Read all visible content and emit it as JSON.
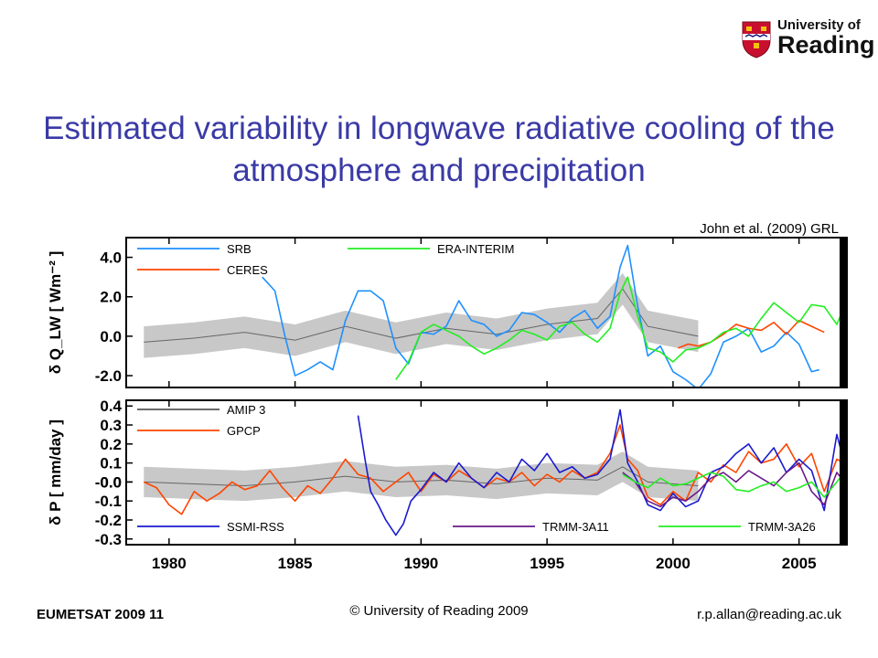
{
  "logo": {
    "line1": "University of",
    "line2": "Reading"
  },
  "title": "Estimated variability in longwave radiative cooling of the atmosphere and precipitation",
  "citation": "John et al. (2009) GRL",
  "footer": {
    "left": "EUMETSAT 2009   11",
    "center": "© University of Reading 2009",
    "right": "r.p.allan@reading.ac.uk"
  },
  "colors": {
    "title": "#3a3aa6",
    "SRB": "#1e90ff",
    "CERES": "#ff4500",
    "ERA-INTERIM": "#22ee22",
    "AMIP 3": "#555555",
    "GPCP": "#ff4500",
    "SSMI-RSS": "#1a1ad0",
    "TRMM-3A11": "#6a1a8a",
    "TRMM-3A26": "#22ee22",
    "spread": "#c8c8c8"
  },
  "chart_data": [
    {
      "type": "line",
      "ylabel": "δ Q_LW [ Wm⁻² ]",
      "ylim": [
        -2.6,
        5.0
      ],
      "yticks": [
        "4.0",
        "2.0",
        "0.0",
        "-2.0"
      ],
      "ytick_values": [
        4.0,
        2.0,
        0.0,
        -2.0
      ],
      "xlim": [
        1978.3,
        2006.9
      ],
      "legend": [
        {
          "name": "SRB",
          "color": "#1e90ff"
        },
        {
          "name": "CERES",
          "color": "#ff4500"
        },
        {
          "name": "ERA-INTERIM",
          "color": "#22ee22"
        }
      ],
      "shaded_band": {
        "x": [
          1979,
          1981,
          1983,
          1985,
          1987,
          1989,
          1991,
          1993,
          1995,
          1997,
          1998,
          1999,
          2001
        ],
        "y": [
          -0.3,
          -0.1,
          0.2,
          -0.2,
          0.5,
          -0.1,
          0.4,
          0.1,
          0.6,
          0.9,
          2.4,
          0.5,
          0.0
        ],
        "half_width": 0.8
      },
      "series": [
        {
          "name": "SRB",
          "x": [
            1983.7,
            1984.2,
            1984.6,
            1985.0,
            1985.5,
            1986.0,
            1986.5,
            1987.0,
            1987.5,
            1988.0,
            1988.5,
            1989.0,
            1989.5,
            1990.0,
            1990.5,
            1991.0,
            1991.5,
            1992.0,
            1992.5,
            1993.0,
            1993.5,
            1994.0,
            1994.5,
            1995.0,
            1995.5,
            1996.0,
            1996.5,
            1997.0,
            1997.5,
            1997.9,
            1998.2,
            1998.6,
            1999.0,
            1999.5,
            2000.0,
            2000.5,
            2001.0,
            2001.5,
            2002.0,
            2002.5,
            2003.0,
            2003.5,
            2004.0,
            2004.5,
            2005.0,
            2005.5,
            2005.8
          ],
          "y": [
            3.0,
            2.3,
            0.0,
            -2.0,
            -1.7,
            -1.3,
            -1.7,
            0.8,
            2.3,
            2.3,
            1.8,
            -0.6,
            -1.4,
            0.2,
            0.1,
            0.5,
            1.8,
            0.8,
            0.6,
            0.0,
            0.3,
            1.2,
            1.1,
            0.7,
            0.2,
            0.9,
            1.3,
            0.4,
            1.0,
            3.5,
            4.6,
            1.5,
            -1.0,
            -0.5,
            -1.8,
            -2.2,
            -2.7,
            -1.9,
            -0.3,
            0.0,
            0.4,
            -0.8,
            -0.5,
            0.2,
            -0.4,
            -1.8,
            -1.7
          ]
        },
        {
          "name": "CERES",
          "x": [
            2000.2,
            2000.6,
            2001.0,
            2001.5,
            2002.0,
            2002.5,
            2003.0,
            2003.5,
            2004.0,
            2004.5,
            2005.0,
            2005.5,
            2006.0
          ],
          "y": [
            -0.6,
            -0.4,
            -0.5,
            -0.3,
            0.1,
            0.6,
            0.4,
            0.3,
            0.7,
            0.1,
            0.8,
            0.5,
            0.2
          ]
        },
        {
          "name": "ERA-INTERIM",
          "x": [
            1989.0,
            1989.5,
            1990.0,
            1990.5,
            1991.0,
            1991.5,
            1992.0,
            1992.5,
            1993.0,
            1993.5,
            1994.0,
            1994.5,
            1995.0,
            1995.5,
            1996.0,
            1996.5,
            1997.0,
            1997.5,
            1997.9,
            1998.2,
            1998.6,
            1999.0,
            1999.5,
            2000.0,
            2000.5,
            2001.0,
            2001.5,
            2002.0,
            2002.5,
            2003.0,
            2003.5,
            2004.0,
            2004.5,
            2005.0,
            2005.5,
            2006.0,
            2006.5,
            2006.8
          ],
          "y": [
            -2.2,
            -1.3,
            0.2,
            0.6,
            0.3,
            0.0,
            -0.5,
            -0.9,
            -0.6,
            -0.2,
            0.3,
            0.1,
            -0.2,
            0.5,
            0.7,
            0.1,
            -0.3,
            0.4,
            2.2,
            3.0,
            1.0,
            -0.6,
            -0.8,
            -1.3,
            -0.7,
            -0.6,
            -0.3,
            0.2,
            0.4,
            0.0,
            0.9,
            1.7,
            1.2,
            0.7,
            1.6,
            1.5,
            0.6,
            1.5
          ]
        }
      ]
    },
    {
      "type": "line",
      "ylabel": "δ P [ mm/day ]",
      "ylim": [
        -0.33,
        0.43
      ],
      "yticks": [
        "0.4",
        "0.3",
        "0.2",
        "0.1",
        "0.0",
        "-0.0",
        "-0.1",
        "-0.2",
        "-0.3"
      ],
      "ytick_values": [
        0.4,
        0.3,
        0.2,
        0.1,
        0.0,
        -0.0,
        -0.1,
        -0.2,
        -0.3
      ],
      "xlim": [
        1978.3,
        2006.9
      ],
      "xticks": [
        "1980",
        "1985",
        "1990",
        "1995",
        "2000",
        "2005"
      ],
      "xtick_values": [
        1980,
        1985,
        1990,
        1995,
        2000,
        2005
      ],
      "legend": [
        {
          "name": "AMIP 3",
          "color": "#555555"
        },
        {
          "name": "GPCP",
          "color": "#ff4500"
        },
        {
          "name": "SSMI-RSS",
          "color": "#1a1ad0"
        },
        {
          "name": "TRMM-3A11",
          "color": "#6a1a8a"
        },
        {
          "name": "TRMM-3A26",
          "color": "#22ee22"
        }
      ],
      "shaded_band": {
        "x": [
          1979,
          1981,
          1983,
          1985,
          1987,
          1989,
          1991,
          1993,
          1995,
          1997,
          1998,
          1999,
          2001
        ],
        "y": [
          0.0,
          -0.01,
          -0.02,
          0.0,
          0.03,
          0.0,
          0.01,
          -0.01,
          0.02,
          0.01,
          0.08,
          0.0,
          -0.02
        ],
        "half_width": 0.08
      },
      "series": [
        {
          "name": "GPCP",
          "x": [
            1979.0,
            1979.5,
            1980.0,
            1980.5,
            1981.0,
            1981.5,
            1982.0,
            1982.5,
            1983.0,
            1983.5,
            1984.0,
            1984.5,
            1985.0,
            1985.5,
            1986.0,
            1986.5,
            1987.0,
            1987.5,
            1988.0,
            1988.5,
            1989.0,
            1989.5,
            1990.0,
            1990.5,
            1991.0,
            1991.5,
            1992.0,
            1992.5,
            1993.0,
            1993.5,
            1994.0,
            1994.5,
            1995.0,
            1995.5,
            1996.0,
            1996.5,
            1997.0,
            1997.5,
            1997.9,
            1998.2,
            1998.6,
            1999.0,
            1999.5,
            2000.0,
            2000.5,
            2001.0,
            2001.5,
            2002.0,
            2002.5,
            2003.0,
            2003.5,
            2004.0,
            2004.5,
            2005.0,
            2005.5,
            2006.0,
            2006.5,
            2006.8
          ],
          "y": [
            0.0,
            -0.03,
            -0.12,
            -0.17,
            -0.05,
            -0.1,
            -0.06,
            0.0,
            -0.04,
            -0.02,
            0.06,
            -0.03,
            -0.1,
            -0.02,
            -0.06,
            0.02,
            0.12,
            0.04,
            0.02,
            -0.05,
            0.0,
            0.05,
            -0.05,
            0.04,
            0.0,
            0.06,
            0.02,
            -0.03,
            0.02,
            0.0,
            0.05,
            -0.02,
            0.04,
            0.0,
            0.06,
            0.02,
            0.05,
            0.15,
            0.3,
            0.12,
            0.06,
            -0.08,
            -0.12,
            -0.05,
            -0.1,
            0.05,
            0.0,
            0.09,
            0.05,
            0.16,
            0.1,
            0.12,
            0.2,
            0.08,
            0.15,
            -0.05,
            0.12,
            0.1
          ]
        },
        {
          "name": "SSMI-RSS",
          "x": [
            1987.5,
            1987.8,
            1988.0,
            1988.3,
            1988.6,
            1989.0,
            1989.3,
            1989.6,
            1990.0,
            1990.5,
            1991.0,
            1991.5,
            1992.0,
            1992.5,
            1993.0,
            1993.5,
            1994.0,
            1994.5,
            1995.0,
            1995.5,
            1996.0,
            1996.5,
            1997.0,
            1997.5,
            1997.9,
            1998.2,
            1998.6,
            1999.0,
            1999.5,
            2000.0,
            2000.5,
            2001.0,
            2001.5,
            2002.0,
            2002.5,
            2003.0,
            2003.5,
            2004.0,
            2004.5,
            2005.0,
            2005.5,
            2006.0,
            2006.5,
            2006.8
          ],
          "y": [
            0.35,
            0.1,
            -0.05,
            -0.12,
            -0.2,
            -0.28,
            -0.22,
            -0.1,
            -0.04,
            0.05,
            0.0,
            0.1,
            0.02,
            -0.03,
            0.05,
            0.0,
            0.12,
            0.06,
            0.15,
            0.05,
            0.08,
            0.02,
            0.04,
            0.12,
            0.38,
            0.1,
            0.0,
            -0.12,
            -0.15,
            -0.06,
            -0.13,
            -0.1,
            0.05,
            0.08,
            0.15,
            0.2,
            0.1,
            0.18,
            0.05,
            0.12,
            0.06,
            -0.15,
            0.25,
            0.1
          ]
        },
        {
          "name": "TRMM-3A11",
          "x": [
            1998.0,
            1998.5,
            1999.0,
            1999.5,
            2000.0,
            2000.5,
            2001.0,
            2001.5,
            2002.0,
            2002.5,
            2003.0,
            2003.5,
            2004.0,
            2004.5,
            2005.0,
            2005.5,
            2006.0,
            2006.5,
            2006.8
          ],
          "y": [
            0.05,
            0.0,
            -0.1,
            -0.13,
            -0.08,
            -0.1,
            -0.05,
            0.02,
            0.05,
            0.0,
            0.06,
            0.02,
            -0.02,
            0.05,
            0.1,
            -0.05,
            -0.12,
            0.05,
            0.0
          ]
        },
        {
          "name": "TRMM-3A26",
          "x": [
            1998.0,
            1998.5,
            1999.0,
            1999.5,
            2000.0,
            2000.5,
            2001.0,
            2001.5,
            2002.0,
            2002.5,
            2003.0,
            2003.5,
            2004.0,
            2004.5,
            2005.0,
            2005.5,
            2006.0,
            2006.5,
            2006.8
          ],
          "y": [
            0.04,
            0.0,
            -0.03,
            0.02,
            -0.02,
            -0.01,
            0.02,
            0.05,
            0.03,
            -0.04,
            -0.05,
            -0.02,
            0.0,
            -0.05,
            -0.03,
            0.0,
            -0.08,
            0.0,
            0.05
          ]
        }
      ]
    }
  ]
}
